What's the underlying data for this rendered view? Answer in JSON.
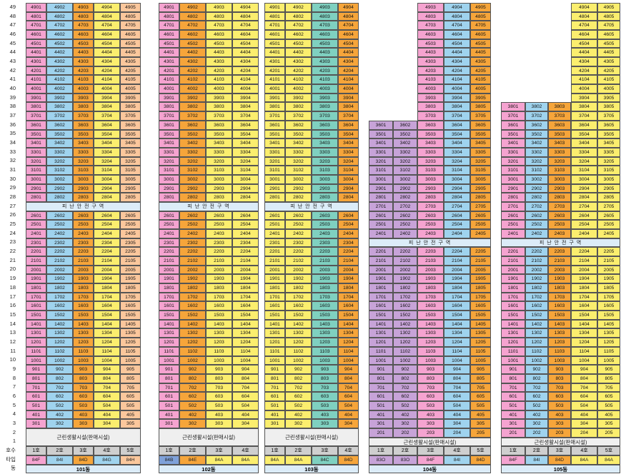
{
  "floor_labels": [
    "49",
    "48",
    "47",
    "46",
    "45",
    "44",
    "43",
    "42",
    "41",
    "40",
    "39",
    "38",
    "37",
    "36",
    "35",
    "34",
    "33",
    "32",
    "31",
    "30",
    "29",
    "28",
    "27",
    "26",
    "25",
    "24",
    "23",
    "22",
    "21",
    "20",
    "19",
    "18",
    "17",
    "16",
    "15",
    "14",
    "13",
    "12",
    "11",
    "10",
    "9",
    "8",
    "7",
    "6",
    "5",
    "4",
    "3",
    "2",
    "1",
    "호수",
    "타입",
    "동"
  ],
  "colors": {
    "yellow": "#fbee6e",
    "orange": "#f6a53a",
    "blue": "#9fd3ee",
    "pink": "#f5a3d0",
    "peach": "#fbc79c",
    "teal": "#7fd0c0",
    "purple": "#c7a3d8",
    "steel": "#7fa1d9"
  },
  "labels": {
    "refuge": "피 난 안 전 구 역",
    "commercial": "근린생활시설(판매시설)"
  },
  "buildings": [
    {
      "name": "101동",
      "left": 36,
      "units": [
        "1호",
        "2호",
        "3호",
        "4호",
        "5호"
      ],
      "types": [
        "84F",
        "84I",
        "84D",
        "84G",
        "84H"
      ],
      "type_colors": [
        "pink",
        "blue",
        "orange",
        "blue",
        "peach"
      ],
      "col_colors": [
        "pink",
        "blue",
        "orange",
        "yellow",
        "peach"
      ],
      "widths": [
        29,
        37,
        29,
        37,
        29
      ],
      "top_floor": 49,
      "refuge_floor": 27,
      "commercial_floors": [
        2,
        1
      ]
    },
    {
      "name": "102동",
      "left": 222,
      "units": [
        "1호",
        "2호",
        "3호",
        "4호"
      ],
      "types": [
        "84B",
        "84E",
        "84A",
        "84A"
      ],
      "type_colors": [
        "steel",
        "orange",
        "yellow",
        "yellow"
      ],
      "col_colors": [
        "pink",
        "orange",
        "yellow",
        "yellow"
      ],
      "widths": [
        29,
        37,
        37,
        37
      ],
      "top_floor": 49,
      "refuge_floor": 27,
      "commercial_floors": [
        2,
        1
      ]
    },
    {
      "name": "103동",
      "left": 370,
      "units": [
        "1호",
        "2호",
        "3호",
        "4호"
      ],
      "types": [
        "84A",
        "84A",
        "84C",
        "84D"
      ],
      "type_colors": [
        "yellow",
        "yellow",
        "teal",
        "orange"
      ],
      "col_colors": [
        "yellow",
        "yellow",
        "teal",
        "orange"
      ],
      "widths": [
        29,
        37,
        37,
        29
      ],
      "top_floor": 49,
      "refuge_floor": 27,
      "commercial_floors": [
        2,
        1
      ]
    },
    {
      "name": "104동",
      "left": 516,
      "units": [
        "1호",
        "2호",
        "3호",
        "4호",
        "5호"
      ],
      "types": [
        "83O",
        "83O",
        "84F",
        "84I",
        "84D"
      ],
      "type_colors": [
        "purple",
        "purple",
        "pink",
        "blue",
        "orange"
      ],
      "col_colors": [
        "purple",
        "purple",
        "pink",
        "blue",
        "orange"
      ],
      "widths": [
        34,
        34,
        37,
        37,
        29
      ],
      "top_floors": [
        36,
        36,
        49,
        49,
        49
      ],
      "refuge_floor": 23,
      "commercial_floors": [
        1
      ]
    },
    {
      "name": "105동",
      "left": 701,
      "units": [
        "1호",
        "2호",
        "3호",
        "4호",
        "5호"
      ],
      "types": [
        "84F",
        "84I",
        "84D",
        "84A",
        "84A"
      ],
      "type_colors": [
        "pink",
        "blue",
        "orange",
        "yellow",
        "yellow"
      ],
      "col_colors": [
        "pink",
        "blue",
        "orange",
        "yellow",
        "yellow"
      ],
      "widths": [
        34,
        32,
        32,
        37,
        32
      ],
      "top_floors": [
        38,
        38,
        38,
        49,
        49
      ],
      "refuge_floor": 23,
      "commercial_floors": [
        1
      ]
    }
  ]
}
